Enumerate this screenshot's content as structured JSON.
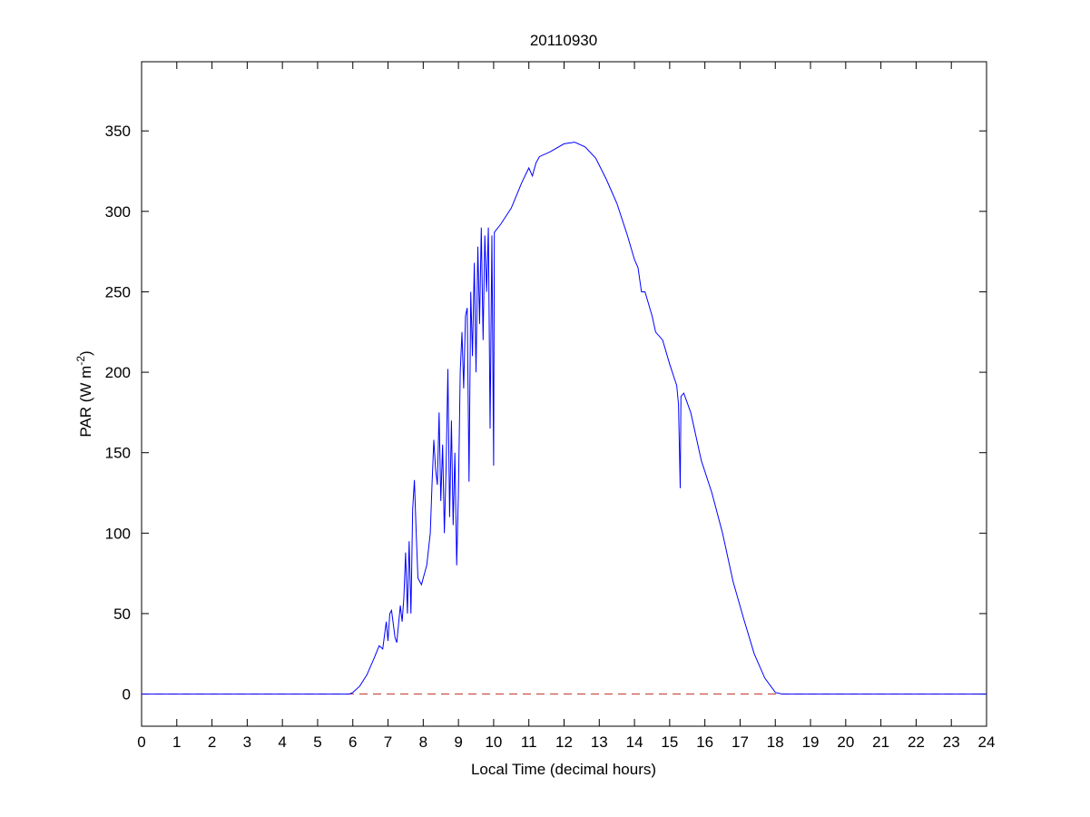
{
  "chart_data": {
    "type": "line",
    "title": "20110930",
    "xlabel": "Local Time (decimal hours)",
    "ylabel": "PAR (W m-2)",
    "ylabel_parts": {
      "main": "PAR (W m",
      "sup": "-2",
      "end": ")"
    },
    "xlim": [
      0,
      24
    ],
    "ylim": [
      -20,
      393
    ],
    "xticks": [
      0,
      1,
      2,
      3,
      4,
      5,
      6,
      7,
      8,
      9,
      10,
      11,
      12,
      13,
      14,
      15,
      16,
      17,
      18,
      19,
      20,
      21,
      22,
      23,
      24
    ],
    "yticks": [
      0,
      50,
      100,
      150,
      200,
      250,
      300,
      350
    ],
    "grid": false,
    "colors": {
      "series": "#0000ff",
      "zero_line": "#c0392b"
    },
    "reference_line": {
      "name": "zero",
      "y": 0,
      "style": "dashed"
    },
    "series": [
      {
        "name": "PAR",
        "points": [
          [
            0,
            0
          ],
          [
            5.9,
            0
          ],
          [
            6.0,
            1
          ],
          [
            6.2,
            5
          ],
          [
            6.4,
            12
          ],
          [
            6.6,
            22
          ],
          [
            6.75,
            30
          ],
          [
            6.85,
            28
          ],
          [
            6.95,
            45
          ],
          [
            7.0,
            33
          ],
          [
            7.05,
            50
          ],
          [
            7.1,
            52
          ],
          [
            7.2,
            35
          ],
          [
            7.25,
            32
          ],
          [
            7.35,
            55
          ],
          [
            7.4,
            45
          ],
          [
            7.45,
            60
          ],
          [
            7.5,
            88
          ],
          [
            7.55,
            50
          ],
          [
            7.6,
            95
          ],
          [
            7.65,
            50
          ],
          [
            7.7,
            115
          ],
          [
            7.75,
            133
          ],
          [
            7.8,
            100
          ],
          [
            7.85,
            72
          ],
          [
            7.95,
            68
          ],
          [
            8.0,
            72
          ],
          [
            8.1,
            80
          ],
          [
            8.2,
            100
          ],
          [
            8.25,
            130
          ],
          [
            8.3,
            158
          ],
          [
            8.35,
            140
          ],
          [
            8.4,
            130
          ],
          [
            8.45,
            175
          ],
          [
            8.5,
            120
          ],
          [
            8.55,
            155
          ],
          [
            8.6,
            100
          ],
          [
            8.65,
            140
          ],
          [
            8.7,
            202
          ],
          [
            8.75,
            110
          ],
          [
            8.8,
            170
          ],
          [
            8.85,
            105
          ],
          [
            8.9,
            150
          ],
          [
            8.95,
            80
          ],
          [
            9.0,
            125
          ],
          [
            9.05,
            200
          ],
          [
            9.1,
            225
          ],
          [
            9.15,
            190
          ],
          [
            9.2,
            235
          ],
          [
            9.25,
            240
          ],
          [
            9.3,
            132
          ],
          [
            9.35,
            250
          ],
          [
            9.4,
            210
          ],
          [
            9.45,
            268
          ],
          [
            9.5,
            200
          ],
          [
            9.55,
            278
          ],
          [
            9.6,
            230
          ],
          [
            9.65,
            290
          ],
          [
            9.7,
            220
          ],
          [
            9.75,
            285
          ],
          [
            9.8,
            250
          ],
          [
            9.85,
            290
          ],
          [
            9.9,
            165
          ],
          [
            9.95,
            285
          ],
          [
            10.0,
            142
          ],
          [
            10.02,
            287
          ],
          [
            10.2,
            292
          ],
          [
            10.5,
            302
          ],
          [
            10.8,
            318
          ],
          [
            11.0,
            327
          ],
          [
            11.1,
            322
          ],
          [
            11.2,
            330
          ],
          [
            11.3,
            334
          ],
          [
            11.6,
            337
          ],
          [
            12.0,
            342
          ],
          [
            12.3,
            343
          ],
          [
            12.6,
            340
          ],
          [
            12.9,
            333
          ],
          [
            13.2,
            320
          ],
          [
            13.5,
            305
          ],
          [
            13.8,
            285
          ],
          [
            14.0,
            270
          ],
          [
            14.1,
            265
          ],
          [
            14.2,
            250
          ],
          [
            14.3,
            250
          ],
          [
            14.5,
            235
          ],
          [
            14.6,
            225
          ],
          [
            14.8,
            220
          ],
          [
            15.0,
            205
          ],
          [
            15.15,
            195
          ],
          [
            15.2,
            192
          ],
          [
            15.25,
            180
          ],
          [
            15.3,
            128
          ],
          [
            15.32,
            185
          ],
          [
            15.4,
            187
          ],
          [
            15.6,
            175
          ],
          [
            15.9,
            145
          ],
          [
            16.2,
            125
          ],
          [
            16.5,
            100
          ],
          [
            16.8,
            70
          ],
          [
            17.1,
            47
          ],
          [
            17.4,
            25
          ],
          [
            17.7,
            10
          ],
          [
            18.0,
            1
          ],
          [
            18.2,
            0
          ],
          [
            24,
            0
          ]
        ]
      }
    ]
  }
}
